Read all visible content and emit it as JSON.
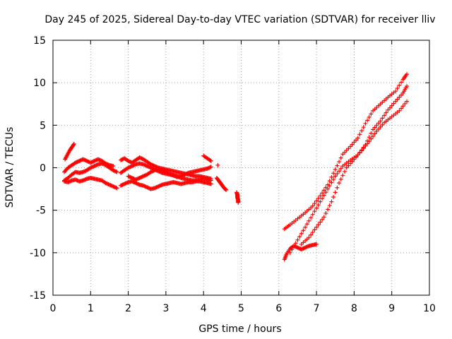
{
  "chart_data": {
    "type": "scatter",
    "title": "Day 245 of 2025, Sidereal Day-to-day VTEC variation (SDTVAR) for receiver lliv",
    "xlabel": "GPS time / hours",
    "ylabel": "SDTVAR / TECUs",
    "xlim": [
      0,
      10
    ],
    "ylim": [
      -15,
      15
    ],
    "xticks": [
      0,
      1,
      2,
      3,
      4,
      5,
      6,
      7,
      8,
      9,
      10
    ],
    "yticks": [
      -15,
      -10,
      -5,
      0,
      5,
      10,
      15
    ],
    "grid": true,
    "marker": "+",
    "color": "#ff0000",
    "series": [
      {
        "x": [
          0.32,
          0.38,
          0.44,
          0.5,
          0.56
        ],
        "y": [
          1.0,
          1.5,
          2.0,
          2.4,
          2.8
        ]
      },
      {
        "x": [
          0.3,
          0.4,
          0.5,
          0.6,
          0.7,
          0.8,
          0.9,
          1.0,
          1.1,
          1.2,
          1.3,
          1.4,
          1.5,
          1.6
        ],
        "y": [
          -0.5,
          0.0,
          0.3,
          0.6,
          0.8,
          1.0,
          0.8,
          0.6,
          0.8,
          1.0,
          0.8,
          0.5,
          0.3,
          0.2
        ]
      },
      {
        "x": [
          0.3,
          0.4,
          0.5,
          0.6,
          0.7,
          0.8,
          0.9,
          1.0,
          1.1,
          1.2,
          1.3,
          1.4,
          1.5,
          1.6,
          1.7
        ],
        "y": [
          -1.5,
          -1.2,
          -0.8,
          -0.5,
          -0.6,
          -0.5,
          -0.3,
          0.0,
          0.2,
          0.4,
          0.5,
          0.3,
          0.0,
          -0.3,
          -0.5
        ]
      },
      {
        "x": [
          0.3,
          0.4,
          0.5,
          0.6,
          0.7,
          0.8,
          0.9,
          1.0,
          1.1,
          1.2,
          1.3,
          1.4,
          1.5,
          1.6,
          1.7
        ],
        "y": [
          -1.6,
          -1.7,
          -1.5,
          -1.4,
          -1.6,
          -1.5,
          -1.3,
          -1.2,
          -1.3,
          -1.4,
          -1.5,
          -1.8,
          -2.0,
          -2.2,
          -2.4
        ]
      },
      {
        "x": [
          1.8,
          1.9,
          2.0,
          2.1,
          2.2,
          2.3,
          2.4,
          2.5,
          2.6,
          2.7,
          2.8,
          2.9,
          3.0,
          3.1,
          3.2,
          3.3,
          3.4,
          3.5,
          3.6,
          3.7,
          3.8,
          3.9,
          4.0,
          4.1,
          4.2
        ],
        "y": [
          0.9,
          1.1,
          0.8,
          0.6,
          0.9,
          1.2,
          1.0,
          0.7,
          0.4,
          0.2,
          0.0,
          -0.1,
          -0.2,
          -0.3,
          -0.4,
          -0.5,
          -0.6,
          -0.7,
          -0.8,
          -0.9,
          -1.0,
          -1.0,
          -1.1,
          -1.2,
          -1.3
        ]
      },
      {
        "x": [
          1.8,
          1.9,
          2.0,
          2.1,
          2.2,
          2.3,
          2.4,
          2.5,
          2.6,
          2.7,
          2.8,
          2.9,
          3.0,
          3.1,
          3.2,
          3.3,
          3.4,
          3.5,
          3.6,
          3.7,
          3.8,
          3.9,
          4.0,
          4.1,
          4.2
        ],
        "y": [
          -0.6,
          -0.3,
          0.0,
          0.2,
          0.4,
          0.5,
          0.4,
          0.2,
          0.0,
          -0.2,
          -0.4,
          -0.6,
          -0.7,
          -0.8,
          -0.9,
          -1.0,
          -1.2,
          -1.3,
          -1.4,
          -1.5,
          -1.5,
          -1.4,
          -1.3,
          -1.4,
          -1.5
        ]
      },
      {
        "x": [
          1.8,
          1.9,
          2.0,
          2.1,
          2.2,
          2.3,
          2.4,
          2.5,
          2.6,
          2.7,
          2.8,
          2.9,
          3.0,
          3.1,
          3.2,
          3.3,
          3.4,
          3.5,
          3.6,
          3.7,
          3.8,
          3.9,
          4.0,
          4.1,
          4.2
        ],
        "y": [
          -2.1,
          -1.9,
          -1.7,
          -1.6,
          -1.8,
          -2.0,
          -2.1,
          -2.3,
          -2.5,
          -2.4,
          -2.2,
          -2.0,
          -1.9,
          -1.8,
          -1.7,
          -1.8,
          -1.9,
          -1.8,
          -1.7,
          -1.7,
          -1.6,
          -1.6,
          -1.7,
          -1.8,
          -1.9
        ]
      },
      {
        "x": [
          2.0,
          2.1,
          2.2,
          2.3,
          2.4,
          2.5,
          2.6,
          2.7,
          2.8,
          2.9,
          3.0,
          3.1,
          3.2,
          3.3,
          3.4,
          3.5,
          3.6,
          3.7,
          3.8,
          3.9,
          4.0,
          4.1,
          4.2
        ],
        "y": [
          -1.0,
          -1.2,
          -1.4,
          -1.2,
          -1.0,
          -0.8,
          -0.5,
          -0.3,
          -0.2,
          -0.3,
          -0.5,
          -0.7,
          -0.9,
          -1.1,
          -1.0,
          -0.8,
          -0.6,
          -0.5,
          -0.4,
          -0.3,
          -0.2,
          -0.1,
          0.1
        ]
      },
      {
        "x": [
          4.0,
          4.1,
          4.2
        ],
        "y": [
          1.4,
          1.1,
          0.8
        ]
      },
      {
        "x": [
          4.35,
          4.4,
          4.45,
          4.5,
          4.55,
          4.6
        ],
        "y": [
          -1.2,
          -1.5,
          -1.8,
          -2.1,
          -2.4,
          -2.6
        ]
      },
      {
        "x": [
          4.38
        ],
        "y": [
          0.3
        ]
      },
      {
        "x": [
          4.88,
          4.9,
          4.9,
          4.92,
          4.92
        ],
        "y": [
          -2.9,
          -3.2,
          -3.5,
          -3.8,
          -4.1
        ]
      },
      {
        "x": [
          6.15,
          6.2,
          6.3,
          6.4,
          6.5,
          6.6,
          6.7,
          6.8,
          6.9,
          7.0
        ],
        "y": [
          -10.8,
          -10.2,
          -9.5,
          -9.2,
          -9.4,
          -9.6,
          -9.4,
          -9.2,
          -9.1,
          -9.0
        ]
      },
      {
        "x": [
          6.15,
          6.3,
          6.5,
          6.7,
          6.9,
          7.1,
          7.3,
          7.5,
          7.7,
          7.9,
          8.1,
          8.3,
          8.5,
          8.7,
          8.9,
          9.1,
          9.3,
          9.4
        ],
        "y": [
          -7.2,
          -6.7,
          -6.0,
          -5.3,
          -4.5,
          -3.3,
          -2.0,
          -0.2,
          1.6,
          2.5,
          3.5,
          5.2,
          6.7,
          7.5,
          8.3,
          9.0,
          10.4,
          11.0
        ]
      },
      {
        "x": [
          6.3,
          6.5,
          6.7,
          6.9,
          7.1,
          7.3,
          7.5,
          7.7,
          7.9,
          8.1,
          8.3,
          8.5,
          8.7,
          8.9,
          9.1,
          9.3,
          9.4
        ],
        "y": [
          -10.0,
          -8.5,
          -7.0,
          -5.5,
          -4.0,
          -2.5,
          -1.0,
          0.2,
          0.9,
          1.5,
          2.7,
          4.5,
          5.5,
          6.8,
          7.8,
          8.8,
          9.6
        ]
      },
      {
        "x": [
          6.6,
          6.8,
          7.0,
          7.2,
          7.4,
          7.6,
          7.8,
          8.0,
          8.2,
          8.4,
          8.6,
          8.8,
          9.0,
          9.2,
          9.4
        ],
        "y": [
          -9.0,
          -8.2,
          -7.0,
          -5.8,
          -4.0,
          -1.8,
          0.0,
          1.0,
          2.0,
          3.1,
          4.3,
          5.3,
          6.0,
          6.7,
          7.8
        ]
      }
    ]
  }
}
